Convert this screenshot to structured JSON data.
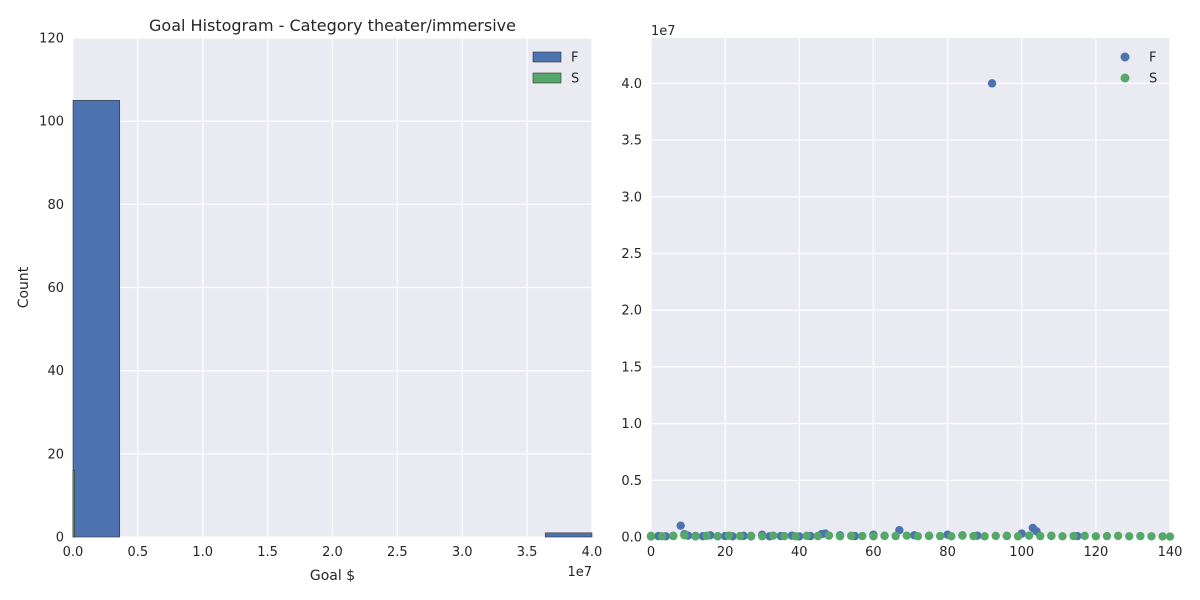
{
  "chart_data": [
    {
      "type": "bar",
      "title": "Goal Histogram - Category theater/immersive",
      "xlabel": "Goal $",
      "ylabel": "Count",
      "x_offset_label": "1e7",
      "xlim": [
        0,
        40000000
      ],
      "ylim": [
        0,
        120
      ],
      "xticks": [
        0,
        5000000,
        10000000,
        15000000,
        20000000,
        25000000,
        30000000,
        35000000,
        40000000
      ],
      "xtick_labels": [
        "0.0",
        "0.5",
        "1.0",
        "1.5",
        "2.0",
        "2.5",
        "3.0",
        "3.5",
        "4.0"
      ],
      "yticks": [
        0,
        20,
        40,
        60,
        80,
        100,
        120
      ],
      "ytick_labels": [
        "0",
        "20",
        "40",
        "60",
        "80",
        "100",
        "120"
      ],
      "grid": true,
      "legend_position": "top-right",
      "series": [
        {
          "name": "F",
          "color": "#4c72b0",
          "bins": [
            {
              "x0": 0,
              "x1": 3600000,
              "count": 105
            },
            {
              "x0": 36400000,
              "x1": 40000000,
              "count": 1
            }
          ]
        },
        {
          "name": "S",
          "color": "#55a868",
          "bins": [
            {
              "x0": 0,
              "x1": 120000,
              "count": 16
            }
          ]
        }
      ]
    },
    {
      "type": "scatter",
      "title": "",
      "xlabel": "",
      "ylabel": "",
      "y_offset_label": "1e7",
      "xlim": [
        0,
        140
      ],
      "ylim": [
        0,
        44000000
      ],
      "xticks": [
        0,
        20,
        40,
        60,
        80,
        100,
        120,
        140
      ],
      "xtick_labels": [
        "0",
        "20",
        "40",
        "60",
        "80",
        "100",
        "120",
        "140"
      ],
      "yticks": [
        0,
        5000000,
        10000000,
        15000000,
        20000000,
        25000000,
        30000000,
        35000000,
        40000000
      ],
      "ytick_labels": [
        "0.0",
        "0.5",
        "1.0",
        "1.5",
        "2.0",
        "2.5",
        "3.0",
        "3.5",
        "4.0"
      ],
      "grid": true,
      "legend_position": "top-right",
      "series": [
        {
          "name": "F",
          "color": "#4c72b0",
          "x": [
            0,
            2,
            4,
            6,
            8,
            9,
            10,
            12,
            14,
            16,
            18,
            20,
            22,
            25,
            27,
            30,
            32,
            35,
            38,
            40,
            43,
            46,
            47,
            51,
            55,
            60,
            63,
            67,
            71,
            75,
            80,
            84,
            88,
            92,
            96,
            100,
            103,
            104,
            108,
            115
          ],
          "y": [
            50000,
            80000,
            60000,
            100000,
            1000000,
            250000,
            120000,
            90000,
            70000,
            150000,
            60000,
            80000,
            60000,
            100000,
            50000,
            200000,
            60000,
            80000,
            120000,
            50000,
            80000,
            250000,
            300000,
            150000,
            80000,
            200000,
            100000,
            600000,
            150000,
            100000,
            200000,
            150000,
            120000,
            40000000,
            100000,
            300000,
            800000,
            500000,
            100000,
            80000
          ]
        },
        {
          "name": "S",
          "color": "#55a868",
          "x": [
            0,
            3,
            6,
            9,
            12,
            15,
            18,
            21,
            24,
            27,
            30,
            33,
            36,
            39,
            42,
            45,
            48,
            51,
            54,
            57,
            60,
            63,
            66,
            69,
            72,
            75,
            78,
            81,
            84,
            87,
            90,
            93,
            96,
            99,
            102,
            105,
            108,
            111,
            114,
            117,
            120,
            123,
            126,
            129,
            132,
            135,
            138,
            140
          ],
          "y": [
            100000,
            60000,
            80000,
            150000,
            50000,
            100000,
            60000,
            120000,
            80000,
            100000,
            60000,
            120000,
            80000,
            60000,
            100000,
            80000,
            120000,
            60000,
            100000,
            80000,
            60000,
            100000,
            80000,
            120000,
            60000,
            100000,
            80000,
            60000,
            120000,
            80000,
            60000,
            100000,
            80000,
            60000,
            120000,
            80000,
            100000,
            60000,
            80000,
            100000,
            60000,
            80000,
            100000,
            60000,
            80000,
            60000,
            50000,
            40000
          ]
        }
      ]
    }
  ]
}
